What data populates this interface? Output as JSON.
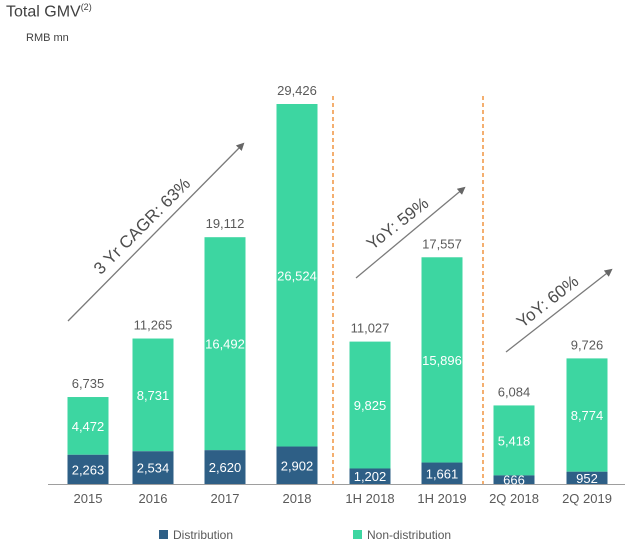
{
  "title": {
    "main": "Total GMV",
    "sup": "(2)",
    "unit": "RMB mn"
  },
  "chart_data": {
    "type": "bar",
    "stacked": true,
    "categories": [
      "2015",
      "2016",
      "2017",
      "2018",
      "1H 2018",
      "1H 2019",
      "2Q 2018",
      "2Q 2019"
    ],
    "series": [
      {
        "name": "Distribution",
        "color": "#2e5f86",
        "values": [
          2263,
          2534,
          2620,
          2902,
          1202,
          1661,
          666,
          952
        ]
      },
      {
        "name": "Non-distribution",
        "color": "#3dd6a1",
        "values": [
          4472,
          8731,
          16492,
          26524,
          9825,
          15896,
          5418,
          8774
        ]
      }
    ],
    "totals": [
      6735,
      11265,
      19112,
      29426,
      11027,
      17557,
      6084,
      9726
    ],
    "ylim": [
      0,
      30000
    ],
    "legend_position": "bottom",
    "annotations": [
      {
        "text": "3 Yr CAGR: 63%",
        "group": "2015-2018"
      },
      {
        "text": "YoY: 59%",
        "group": "1H"
      },
      {
        "text": "YoY: 60%",
        "group": "2Q"
      }
    ]
  }
}
